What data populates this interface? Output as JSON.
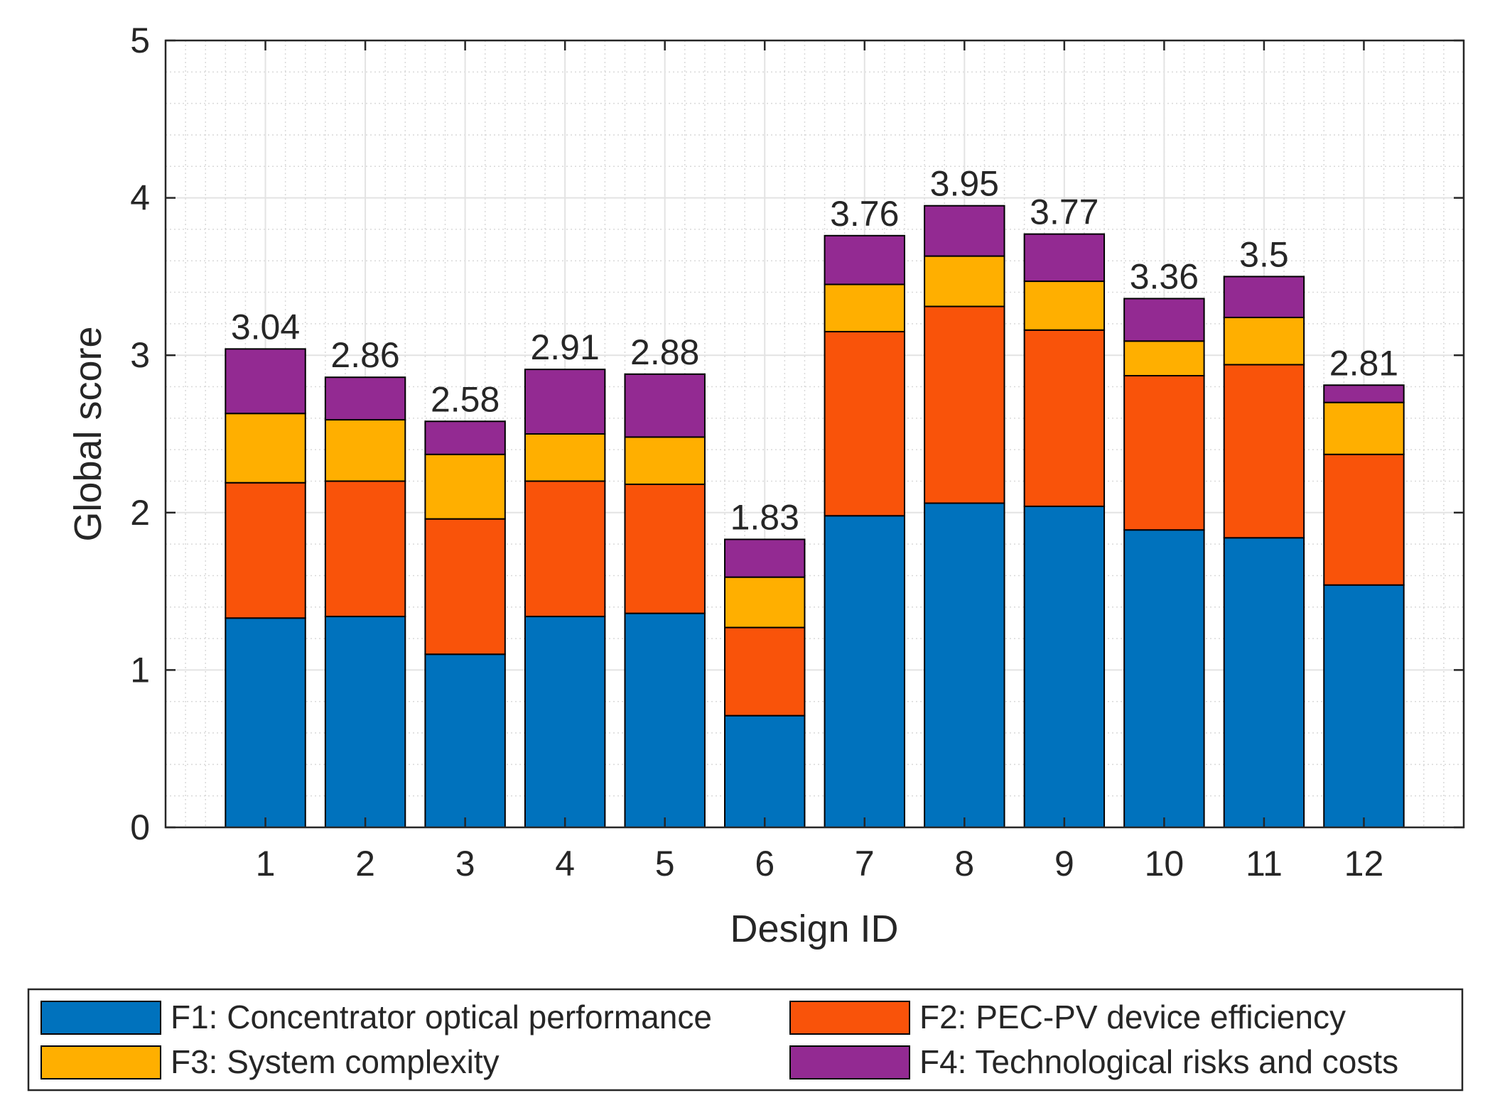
{
  "chart_data": {
    "type": "bar",
    "stacked": true,
    "xlabel": "Design ID",
    "ylabel": "Global score",
    "ylim": [
      0,
      5
    ],
    "yticks": [
      "0",
      "1",
      "2",
      "3",
      "4",
      "5"
    ],
    "grid": true,
    "minor_grid": true,
    "legend_position": "bottom",
    "categories": [
      "1",
      "2",
      "3",
      "4",
      "5",
      "6",
      "7",
      "8",
      "9",
      "10",
      "11",
      "12"
    ],
    "series": [
      {
        "name": "F1: Concentrator optical performance",
        "color": "#0072BD",
        "values": [
          1.33,
          1.34,
          1.1,
          1.34,
          1.36,
          0.71,
          1.98,
          2.06,
          2.04,
          1.89,
          1.84,
          1.54
        ]
      },
      {
        "name": "F2: PEC-PV device efficiency",
        "color": "#F9530A",
        "values": [
          0.86,
          0.86,
          0.86,
          0.86,
          0.82,
          0.56,
          1.17,
          1.25,
          1.12,
          0.98,
          1.1,
          0.83
        ]
      },
      {
        "name": "F3: System complexity",
        "color": "#FFAF00",
        "values": [
          0.44,
          0.39,
          0.41,
          0.3,
          0.3,
          0.32,
          0.3,
          0.32,
          0.31,
          0.22,
          0.3,
          0.33
        ]
      },
      {
        "name": "F4: Technological risks and costs",
        "color": "#932A92",
        "values": [
          0.41,
          0.27,
          0.21,
          0.41,
          0.4,
          0.24,
          0.31,
          0.32,
          0.3,
          0.27,
          0.26,
          0.11
        ]
      }
    ],
    "totals": [
      "3.04",
      "2.86",
      "2.58",
      "2.91",
      "2.88",
      "1.83",
      "3.76",
      "3.95",
      "3.77",
      "3.36",
      "3.5",
      "2.81"
    ]
  }
}
